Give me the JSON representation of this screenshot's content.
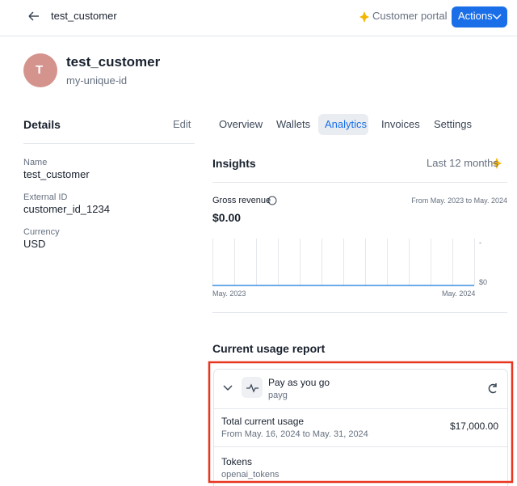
{
  "header": {
    "title": "test_customer",
    "customer_portal": "Customer portal",
    "actions": "Actions"
  },
  "customer": {
    "avatar": "T",
    "name": "test_customer",
    "id": "my-unique-id"
  },
  "details": {
    "title": "Details",
    "edit": "Edit",
    "fields": [
      {
        "label": "Name",
        "value": "test_customer"
      },
      {
        "label": "External ID",
        "value": "customer_id_1234"
      },
      {
        "label": "Currency",
        "value": "USD"
      }
    ]
  },
  "tabs": [
    "Overview",
    "Wallets",
    "Analytics",
    "Invoices",
    "Settings"
  ],
  "insights": {
    "title": "Insights",
    "period": "Last 12 months",
    "metric": "Gross revenue",
    "range": "From May. 2023 to May. 2024",
    "total": "$0.00",
    "y_labels": [
      "-",
      "$0"
    ],
    "x_labels": [
      "May. 2023",
      "May. 2024"
    ]
  },
  "usage": {
    "title": "Current usage report",
    "plan": {
      "name": "Pay as you go",
      "code": "payg"
    },
    "total": {
      "label": "Total current usage",
      "range": "From May. 16, 2024 to May. 31, 2024",
      "value": "$17,000.00"
    },
    "metric": {
      "name": "Tokens",
      "code": "openai_tokens"
    }
  }
}
